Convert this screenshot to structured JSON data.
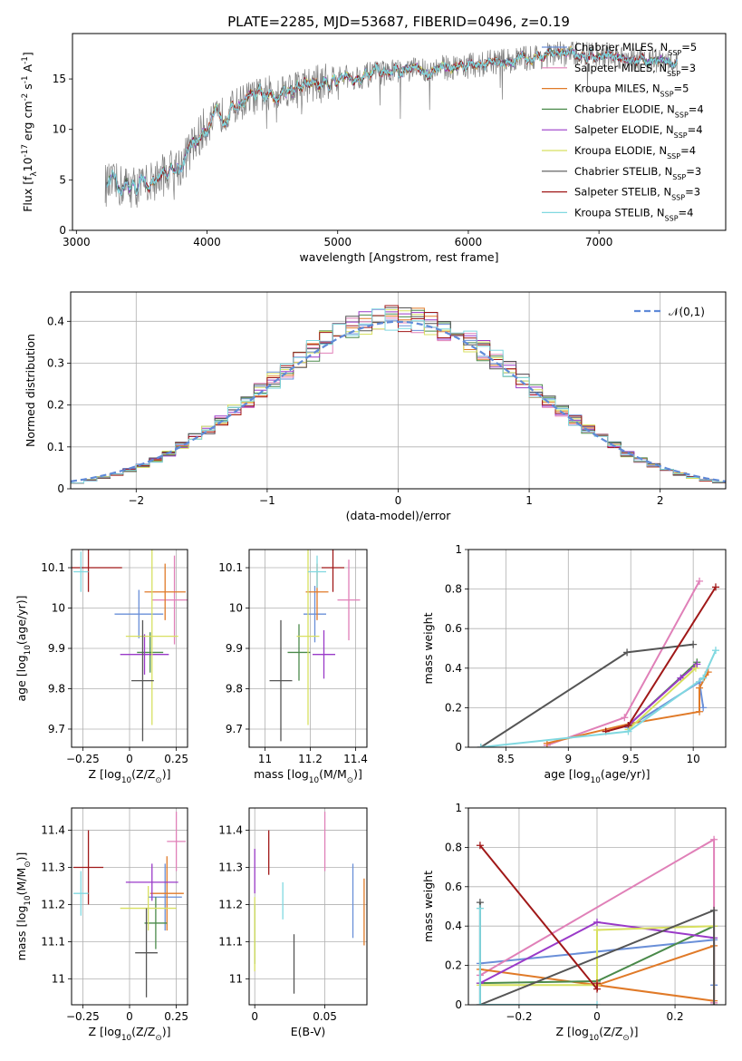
{
  "figure": {
    "title": "PLATE=2285, MJD=53687, FIBERID=0496, z=0.19",
    "models": [
      {
        "label": "Chabrier MILES, N$_{SSP}$=5",
        "color": "#6a8fd8"
      },
      {
        "label": "Salpeter MILES, N$_{SSP}$=3",
        "color": "#e080b8"
      },
      {
        "label": "Kroupa MILES, N$_{SSP}$=5",
        "color": "#e07a28"
      },
      {
        "label": "Chabrier ELODIE, N$_{SSP}$=4",
        "color": "#4a8a4a"
      },
      {
        "label": "Salpeter ELODIE, N$_{SSP}$=4",
        "color": "#9a3ac8"
      },
      {
        "label": "Kroupa ELODIE, N$_{SSP}$=4",
        "color": "#d8e060"
      },
      {
        "label": "Chabrier STELIB, N$_{SSP}$=3",
        "color": "#555555"
      },
      {
        "label": "Salpeter STELIB, N$_{SSP}$=3",
        "color": "#a01818"
      },
      {
        "label": "Kroupa STELIB, N$_{SSP}$=4",
        "color": "#80d8e0"
      }
    ]
  },
  "chart_data": [
    {
      "id": "spectrum",
      "type": "line",
      "xlabel": "wavelength [Angstrom, rest frame]",
      "ylabel": "Flux [f$_\\lambda$10$^{-17}$ erg cm$^{-2}$ s$^{-1}$ A$^{-1}$]",
      "xlim": [
        2970,
        7970
      ],
      "ylim": [
        0,
        19.5
      ],
      "xticks": [
        3000,
        4000,
        5000,
        6000,
        7000
      ],
      "yticks": [
        0,
        5,
        10,
        15
      ],
      "grid": false,
      "legend": "right",
      "data_color": "#7f7f7f",
      "data_trend": {
        "x": [
          3220,
          3500,
          3800,
          4000,
          4300,
          4600,
          5000,
          5500,
          5900,
          6300,
          6700,
          7000,
          7350,
          7550
        ],
        "y": [
          4.5,
          4.3,
          6.5,
          10.5,
          13,
          14,
          15,
          15.8,
          16.2,
          16.8,
          17.5,
          17.4,
          17.0,
          16.5
        ]
      },
      "data_range": [
        3220,
        7600
      ]
    },
    {
      "id": "residuals",
      "type": "line",
      "xlabel": "(data-model)/error",
      "ylabel": "Normed distribution",
      "xlim": [
        -2.5,
        2.5
      ],
      "ylim": [
        0,
        0.47
      ],
      "xticks": [
        -2,
        -1,
        0,
        1,
        2
      ],
      "yticks": [
        0.0,
        0.1,
        0.2,
        0.3,
        0.4
      ],
      "grid": true,
      "legend": "top-right",
      "reference": {
        "name": "$\\mathcal{N}(0,1)$",
        "color": "#5f8ad8"
      },
      "bin_width": 0.1,
      "bin_start": -2.5
    },
    {
      "id": "age-vs-Z",
      "type": "scatter",
      "xlabel": "Z [log$_{10}$(Z/Z$_\\odot$)]",
      "ylabel": "age  [log$_{10}$(age/yr)]",
      "xlim": [
        -0.31,
        0.31
      ],
      "ylim": [
        9.655,
        10.145
      ],
      "xticks": [
        -0.25,
        0.0,
        0.25
      ],
      "yticks": [
        9.7,
        9.8,
        9.9,
        10.0,
        10.1
      ],
      "grid": true,
      "points": [
        {
          "x": 0.05,
          "y": 9.985,
          "xerr": 0.13,
          "yerr": 0.06
        },
        {
          "x": 0.24,
          "y": 10.02,
          "xerr": 0.12,
          "yerr": 0.11
        },
        {
          "x": 0.19,
          "y": 10.04,
          "xerr": 0.11,
          "yerr": 0.07
        },
        {
          "x": 0.11,
          "y": 9.89,
          "xerr": 0.07,
          "yerr": 0.05
        },
        {
          "x": 0.08,
          "y": 9.885,
          "xerr": 0.13,
          "yerr": 0.05
        },
        {
          "x": 0.12,
          "y": 9.93,
          "xerr": 0.14,
          "yerr": 0.22
        },
        {
          "x": 0.07,
          "y": 9.82,
          "xerr": 0.06,
          "yerr": 0.15
        },
        {
          "x": -0.22,
          "y": 10.1,
          "xerr": 0.18,
          "yerr": 0.06
        },
        {
          "x": -0.26,
          "y": 10.09,
          "xerr": 0.04,
          "yerr": 0.05
        }
      ]
    },
    {
      "id": "age-vs-mass",
      "type": "scatter",
      "xlabel": "mass [log$_{10}$(M/M$_\\odot$)]",
      "ylabel": "",
      "xlim": [
        10.93,
        11.45
      ],
      "ylim": [
        9.655,
        10.145
      ],
      "xticks": [
        11.0,
        11.2,
        11.4
      ],
      "yticks": [
        9.7,
        9.8,
        9.9,
        10.0,
        10.1
      ],
      "grid": true,
      "points": [
        {
          "x": 11.22,
          "y": 9.985,
          "xerr": 0.05,
          "yerr": 0.07
        },
        {
          "x": 11.37,
          "y": 10.02,
          "xerr": 0.05,
          "yerr": 0.1
        },
        {
          "x": 11.23,
          "y": 10.04,
          "xerr": 0.05,
          "yerr": 0.07
        },
        {
          "x": 11.15,
          "y": 9.89,
          "xerr": 0.05,
          "yerr": 0.07
        },
        {
          "x": 11.26,
          "y": 9.885,
          "xerr": 0.05,
          "yerr": 0.06
        },
        {
          "x": 11.19,
          "y": 9.93,
          "xerr": 0.05,
          "yerr": 0.22
        },
        {
          "x": 11.07,
          "y": 9.82,
          "xerr": 0.05,
          "yerr": 0.15
        },
        {
          "x": 11.3,
          "y": 10.1,
          "xerr": 0.05,
          "yerr": 0.06
        },
        {
          "x": 11.23,
          "y": 10.09,
          "xerr": 0.04,
          "yerr": 0.04
        }
      ]
    },
    {
      "id": "massweight-vs-age",
      "type": "line",
      "xlabel": "age  [log$_{10}$(age/yr)]",
      "ylabel": "mass weight",
      "xlim": [
        8.2,
        10.26
      ],
      "ylim": [
        0,
        1.0
      ],
      "xticks": [
        8.5,
        9.0,
        9.5,
        10.0
      ],
      "yticks": [
        0.0,
        0.2,
        0.4,
        0.6,
        0.8,
        1.0
      ],
      "grid": true,
      "series": [
        {
          "x": [
            10.08,
            10.05,
            9.48
          ],
          "y": [
            0.2,
            0.33,
            0.1
          ]
        },
        {
          "x": [
            10.05,
            9.45,
            8.83
          ],
          "y": [
            0.84,
            0.15,
            0.01
          ]
        },
        {
          "x": [
            10.12,
            10.05,
            10.05,
            9.5,
            8.83
          ],
          "y": [
            0.38,
            0.3,
            0.18,
            0.12,
            0.02
          ]
        },
        {
          "x": [
            10.03,
            9.48
          ],
          "y": [
            0.43,
            0.11
          ]
        },
        {
          "x": [
            10.03,
            9.9,
            9.48
          ],
          "y": [
            0.42,
            0.35,
            0.11
          ]
        },
        {
          "x": [
            10.02,
            9.48
          ],
          "y": [
            0.4,
            0.09
          ]
        },
        {
          "x": [
            10.0,
            9.47,
            8.3
          ],
          "y": [
            0.52,
            0.48,
            0.0
          ]
        },
        {
          "x": [
            10.18,
            9.48,
            9.3
          ],
          "y": [
            0.81,
            0.11,
            0.08
          ]
        },
        {
          "x": [
            10.18,
            10.08,
            9.48,
            8.3
          ],
          "y": [
            0.49,
            0.35,
            0.08,
            0.0
          ]
        }
      ]
    },
    {
      "id": "mass-vs-Z",
      "type": "scatter",
      "xlabel": "Z [log$_{10}$(Z/Z$_\\odot$)]",
      "ylabel": "mass [log$_{10}$(M/M$_\\odot$)]",
      "xlim": [
        -0.31,
        0.31
      ],
      "ylim": [
        10.93,
        11.46
      ],
      "xticks": [
        -0.25,
        0.0,
        0.25
      ],
      "yticks": [
        11.0,
        11.1,
        11.2,
        11.3,
        11.4
      ],
      "grid": true,
      "points": [
        {
          "x": 0.19,
          "y": 11.22,
          "xerr": 0.09,
          "yerr": 0.09
        },
        {
          "x": 0.25,
          "y": 11.37,
          "xerr": 0.05,
          "yerr": 0.08
        },
        {
          "x": 0.2,
          "y": 11.23,
          "xerr": 0.09,
          "yerr": 0.1
        },
        {
          "x": 0.14,
          "y": 11.15,
          "xerr": 0.06,
          "yerr": 0.07
        },
        {
          "x": 0.12,
          "y": 11.26,
          "xerr": 0.14,
          "yerr": 0.05
        },
        {
          "x": 0.1,
          "y": 11.19,
          "xerr": 0.15,
          "yerr": 0.06
        },
        {
          "x": 0.09,
          "y": 11.07,
          "xerr": 0.06,
          "yerr": 0.12
        },
        {
          "x": -0.22,
          "y": 11.3,
          "xerr": 0.08,
          "yerr": 0.1
        },
        {
          "x": -0.26,
          "y": 11.23,
          "xerr": 0.04,
          "yerr": 0.06
        }
      ]
    },
    {
      "id": "mass-vs-EBV",
      "type": "scatter",
      "xlabel": "E(B-V)",
      "ylabel": "",
      "xlim": [
        -0.004,
        0.08
      ],
      "ylim": [
        10.93,
        11.46
      ],
      "xticks": [
        0.0,
        0.05
      ],
      "yticks": [
        11.0,
        11.1,
        11.2,
        11.3,
        11.4
      ],
      "grid": true,
      "points": [
        {
          "x": 0.07,
          "y": 11.21,
          "xerr": 0,
          "yerr": 0.1
        },
        {
          "x": 0.05,
          "y": 11.37,
          "xerr": 0,
          "yerr": 0.08
        },
        {
          "x": 0.078,
          "y": 11.18,
          "xerr": 0,
          "yerr": 0.09
        },
        {
          "x": 0.0,
          "y": 11.12,
          "xerr": 0,
          "yerr": 0.08
        },
        {
          "x": 0.0,
          "y": 11.29,
          "xerr": 0,
          "yerr": 0.06
        },
        {
          "x": 0.0,
          "y": 11.12,
          "xerr": 0,
          "yerr": 0.1
        },
        {
          "x": 0.028,
          "y": 11.04,
          "xerr": 0,
          "yerr": 0.08
        },
        {
          "x": 0.01,
          "y": 11.34,
          "xerr": 0,
          "yerr": 0.06
        },
        {
          "x": 0.02,
          "y": 11.21,
          "xerr": 0,
          "yerr": 0.05
        }
      ]
    },
    {
      "id": "massweight-vs-Z",
      "type": "line",
      "xlabel": "Z [log$_{10}$(Z/Z$_\\odot$)]",
      "ylabel": "mass weight",
      "xlim": [
        -0.33,
        0.33
      ],
      "ylim": [
        0,
        1.0
      ],
      "xticks": [
        -0.2,
        0.0,
        0.2
      ],
      "yticks": [
        0.0,
        0.2,
        0.4,
        0.6,
        0.8,
        1.0
      ],
      "grid": true,
      "series": [
        {
          "x": [
            -0.3,
            0.3,
            0.3
          ],
          "y": [
            0.21,
            0.33,
            0.1
          ]
        },
        {
          "x": [
            -0.3,
            0.3,
            0.3
          ],
          "y": [
            0.15,
            0.84,
            0.01
          ]
        },
        {
          "x": [
            -0.3,
            0.3,
            0.3,
            0.0
          ],
          "y": [
            0.18,
            0.02,
            0.3,
            0.1
          ]
        },
        {
          "x": [
            -0.3,
            0.0,
            0.3
          ],
          "y": [
            0.11,
            0.12,
            0.4
          ]
        },
        {
          "x": [
            -0.3,
            0.0,
            0.3
          ],
          "y": [
            0.11,
            0.42,
            0.34
          ]
        },
        {
          "x": [
            -0.3,
            0.0,
            0.0,
            0.3
          ],
          "y": [
            0.1,
            0.1,
            0.38,
            0.4
          ]
        },
        {
          "x": [
            -0.3,
            -0.3,
            0.3,
            0.3
          ],
          "y": [
            0.52,
            0.0,
            0.48,
            0.0
          ]
        },
        {
          "x": [
            -0.3,
            0.0,
            0.0
          ],
          "y": [
            0.81,
            0.08,
            0.11
          ]
        },
        {
          "x": [
            -0.3,
            -0.3,
            0.0
          ],
          "y": [
            0.49,
            0.0,
            0.0
          ]
        }
      ]
    }
  ]
}
